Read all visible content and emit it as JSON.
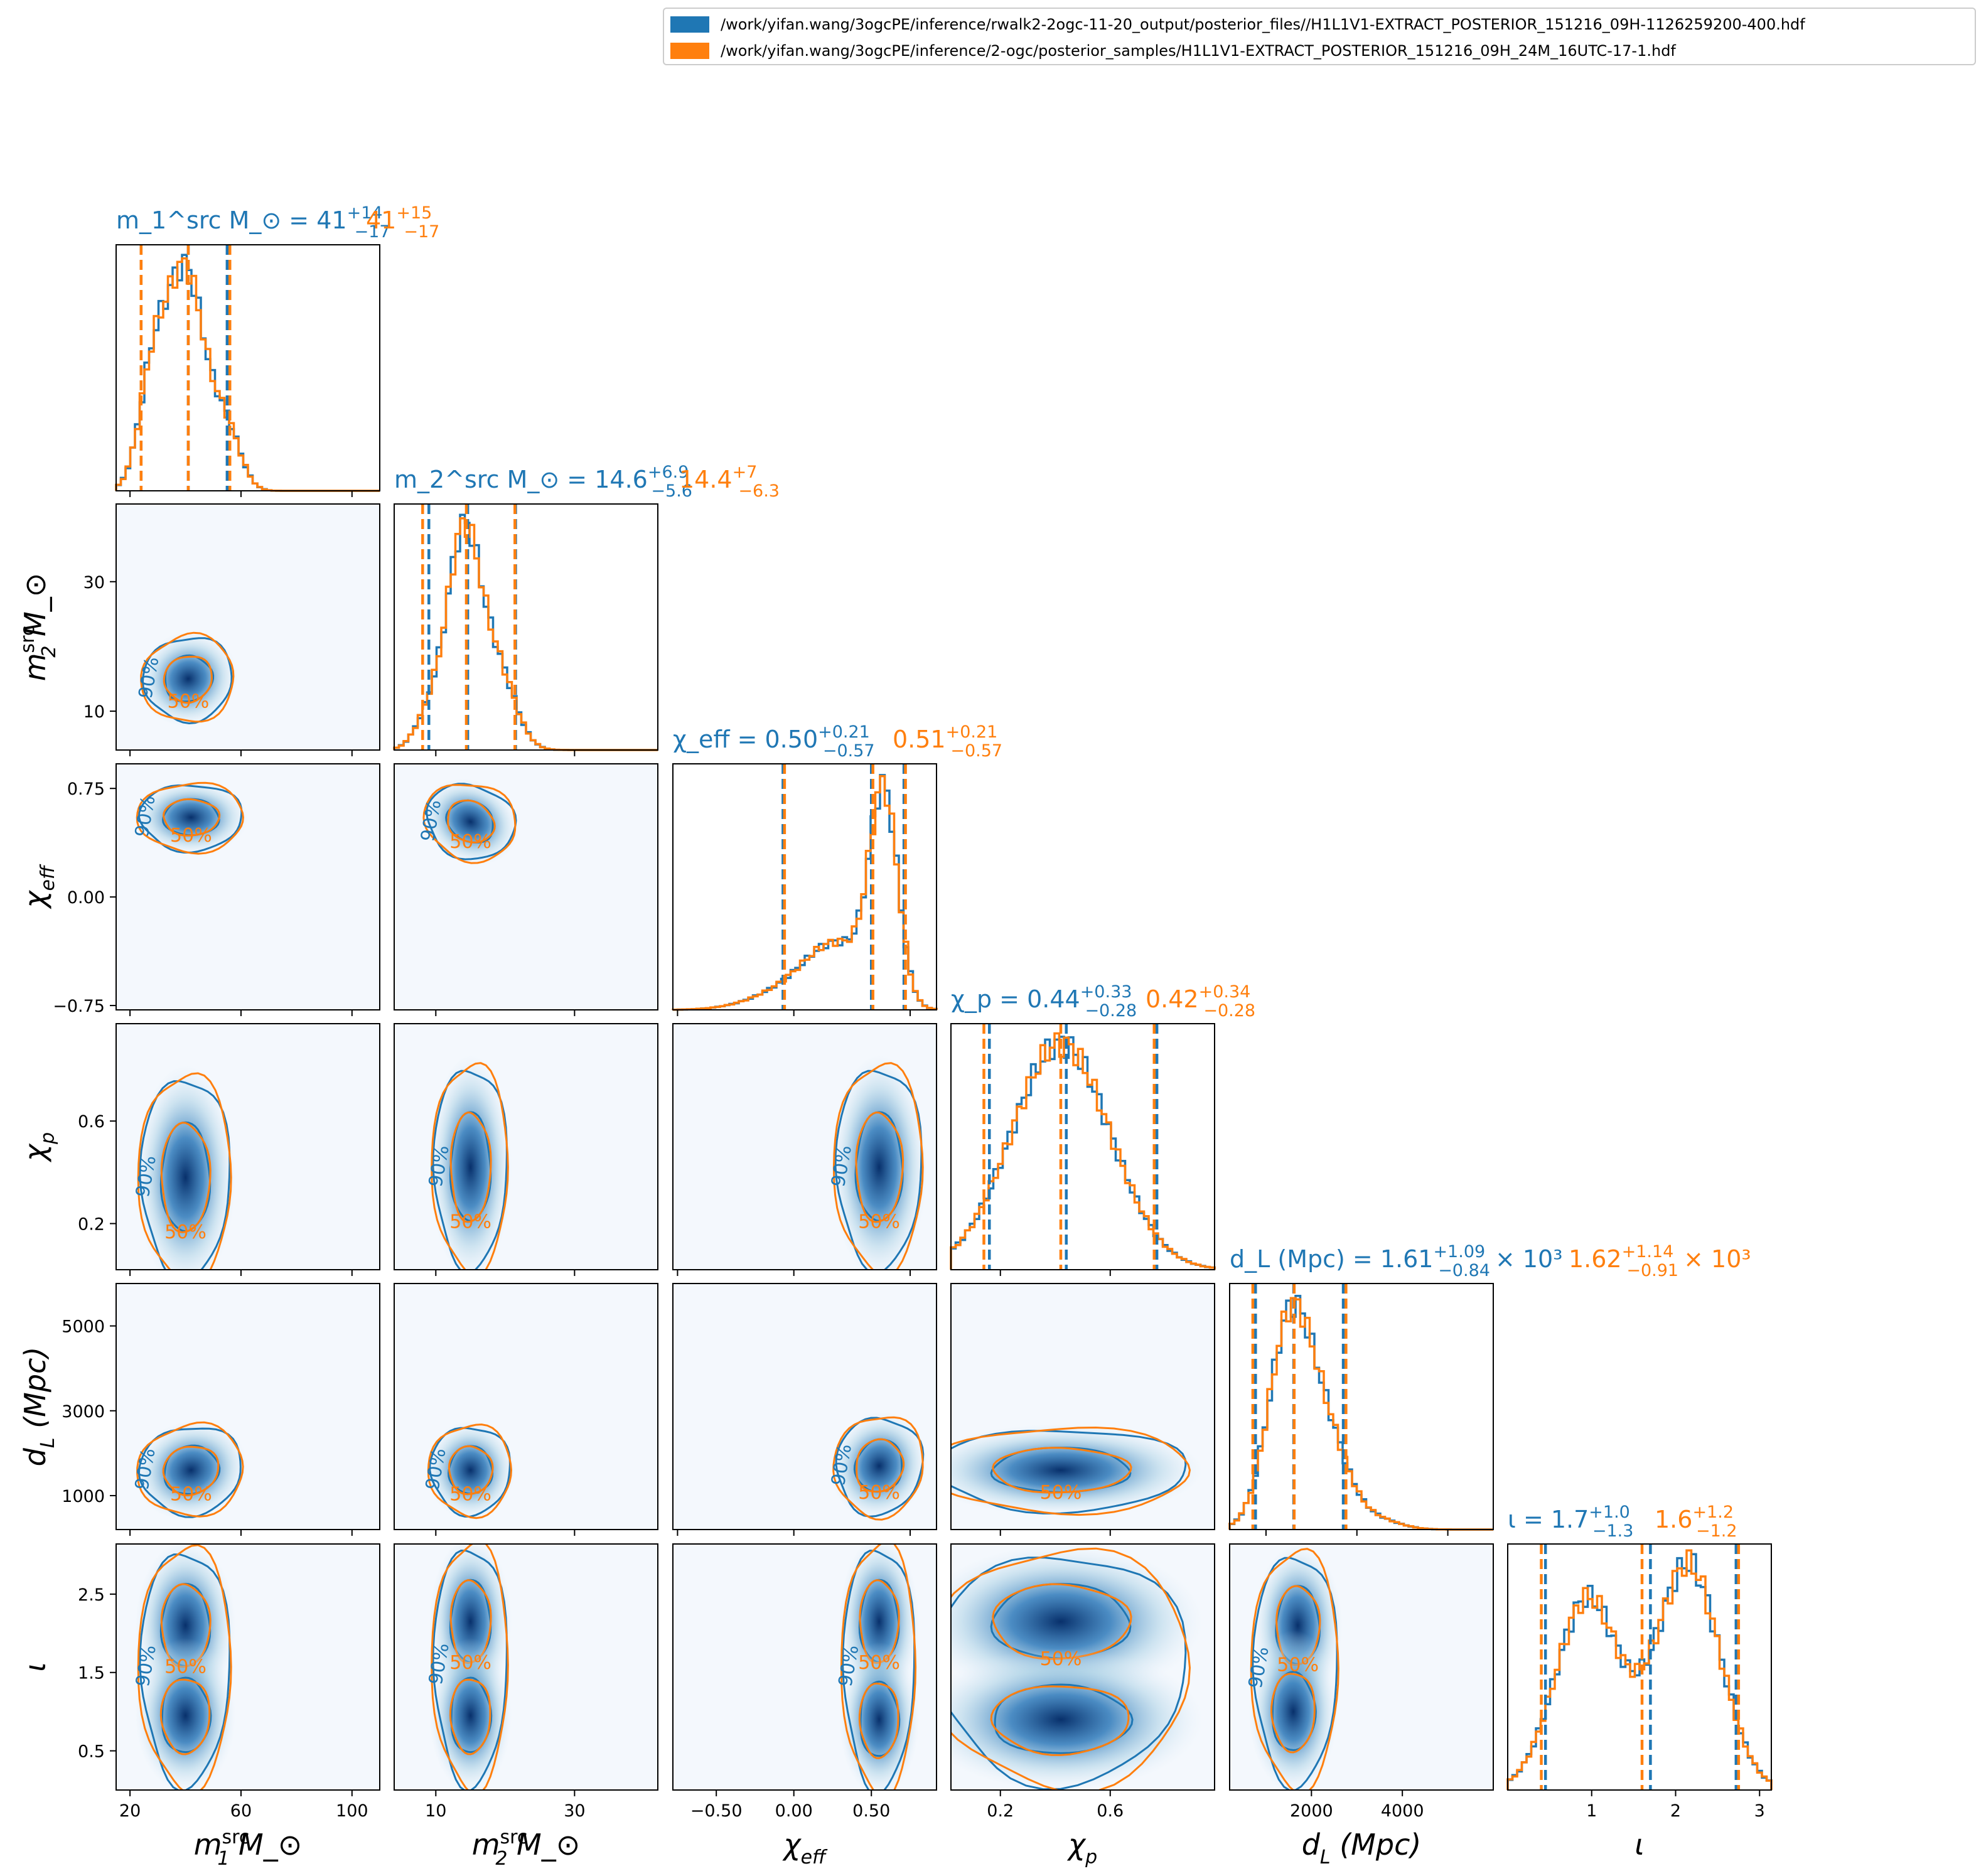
{
  "legend": [
    {
      "label": "/work/yifan.wang/3ogcPE/inference/rwalk2-2ogc-11-20_output/posterior_files//H1L1V1-EXTRACT_POSTERIOR_151216_09H-1126259200-400.hdf",
      "color": "#1f77b4"
    },
    {
      "label": "/work/yifan.wang/3ogcPE/inference/2-ogc/posterior_samples/H1L1V1-EXTRACT_POSTERIOR_151216_09H_24M_16UTC-17-1.hdf",
      "color": "#ff7f0e"
    }
  ],
  "colors": {
    "series1": "#1f77b4",
    "series2": "#ff7f0e",
    "density": "#08306b"
  },
  "chart_data": {
    "type": "corner",
    "parameters": [
      {
        "key": "m1",
        "label": "m_1^src M_⊙",
        "range": [
          15,
          110
        ],
        "ticks": [
          20,
          60,
          100
        ],
        "title": {
          "prefix": "m_1^src M_⊙ =",
          "s1": {
            "median": "41",
            "plus": "+14",
            "minus": "−17"
          },
          "s2": {
            "median": "41",
            "plus": "+15",
            "minus": "−17"
          }
        },
        "series1": {
          "median": 41,
          "lower": 24,
          "upper": 55
        },
        "series2": {
          "median": 41,
          "lower": 24,
          "upper": 56
        }
      },
      {
        "key": "m2",
        "label": "m_2^src M_⊙",
        "range": [
          4,
          42
        ],
        "ticks": [
          10,
          30
        ],
        "title": {
          "prefix": "m_2^src M_⊙ = 14.6",
          "s1": {
            "median": "",
            "plus": "+6.9",
            "minus": "−5.6"
          },
          "s2": {
            "median": "14.4",
            "plus": "+7",
            "minus": "−6.3"
          }
        },
        "series1": {
          "median": 14.6,
          "lower": 9.0,
          "upper": 21.5
        },
        "series2": {
          "median": 14.4,
          "lower": 8.1,
          "upper": 21.4
        }
      },
      {
        "key": "chi_eff",
        "label": "χ_eff",
        "range": [
          -0.78,
          0.92
        ],
        "ticks": [
          -0.75,
          0.0,
          0.75
        ],
        "bottom_ticks": [
          -0.5,
          0.0,
          0.5
        ],
        "title": {
          "prefix": "χ_eff = 0.50",
          "s1": {
            "median": "",
            "plus": "+0.21",
            "minus": "−0.57"
          },
          "s2": {
            "median": "0.51",
            "plus": "+0.21",
            "minus": "−0.57"
          }
        },
        "series1": {
          "median": 0.5,
          "lower": -0.07,
          "upper": 0.71
        },
        "series2": {
          "median": 0.51,
          "lower": -0.06,
          "upper": 0.72
        }
      },
      {
        "key": "chi_p",
        "label": "χ_p",
        "range": [
          0.02,
          0.98
        ],
        "ticks": [
          0.2,
          0.6
        ],
        "title": {
          "prefix": "χ_p = 0.44",
          "s1": {
            "median": "",
            "plus": "+0.33",
            "minus": "−0.28"
          },
          "s2": {
            "median": "0.42",
            "plus": "+0.34",
            "minus": "−0.28"
          }
        },
        "series1": {
          "median": 0.44,
          "lower": 0.16,
          "upper": 0.77
        },
        "series2": {
          "median": 0.42,
          "lower": 0.14,
          "upper": 0.76
        }
      },
      {
        "key": "dL",
        "label": "d_L (Mpc)",
        "range": [
          200,
          6000
        ],
        "ticks": [
          1000,
          3000,
          5000
        ],
        "bottom_ticks": [
          2000,
          4000
        ],
        "title": {
          "prefix": "d_L (Mpc) = 1.61",
          "s1": {
            "median": "",
            "plus": "+1.09",
            "minus": "−0.84",
            "suffix": "× 10³"
          },
          "s2": {
            "median": "1.62",
            "plus": "+1.14",
            "minus": "−0.91",
            "suffix": "× 10³"
          }
        },
        "series1": {
          "median": 1610,
          "lower": 770,
          "upper": 2700
        },
        "series2": {
          "median": 1620,
          "lower": 710,
          "upper": 2760
        }
      },
      {
        "key": "iota",
        "label": "ι",
        "range": [
          0,
          3.14
        ],
        "ticks": [
          0.5,
          1.5,
          2.5
        ],
        "bottom_ticks": [
          1,
          2,
          3
        ],
        "title": {
          "prefix": "ι = 1.7",
          "s1": {
            "median": "",
            "plus": "+1.0",
            "minus": "−1.3"
          },
          "s2": {
            "median": "1.6",
            "plus": "+1.2",
            "minus": "−1.2"
          }
        },
        "series1": {
          "median": 1.7,
          "lower": 0.45,
          "upper": 2.72
        },
        "series2": {
          "median": 1.6,
          "lower": 0.4,
          "upper": 2.75
        }
      }
    ],
    "contour_labels": [
      "50%",
      "90%"
    ],
    "grid": false,
    "legend_position": "top-right"
  }
}
